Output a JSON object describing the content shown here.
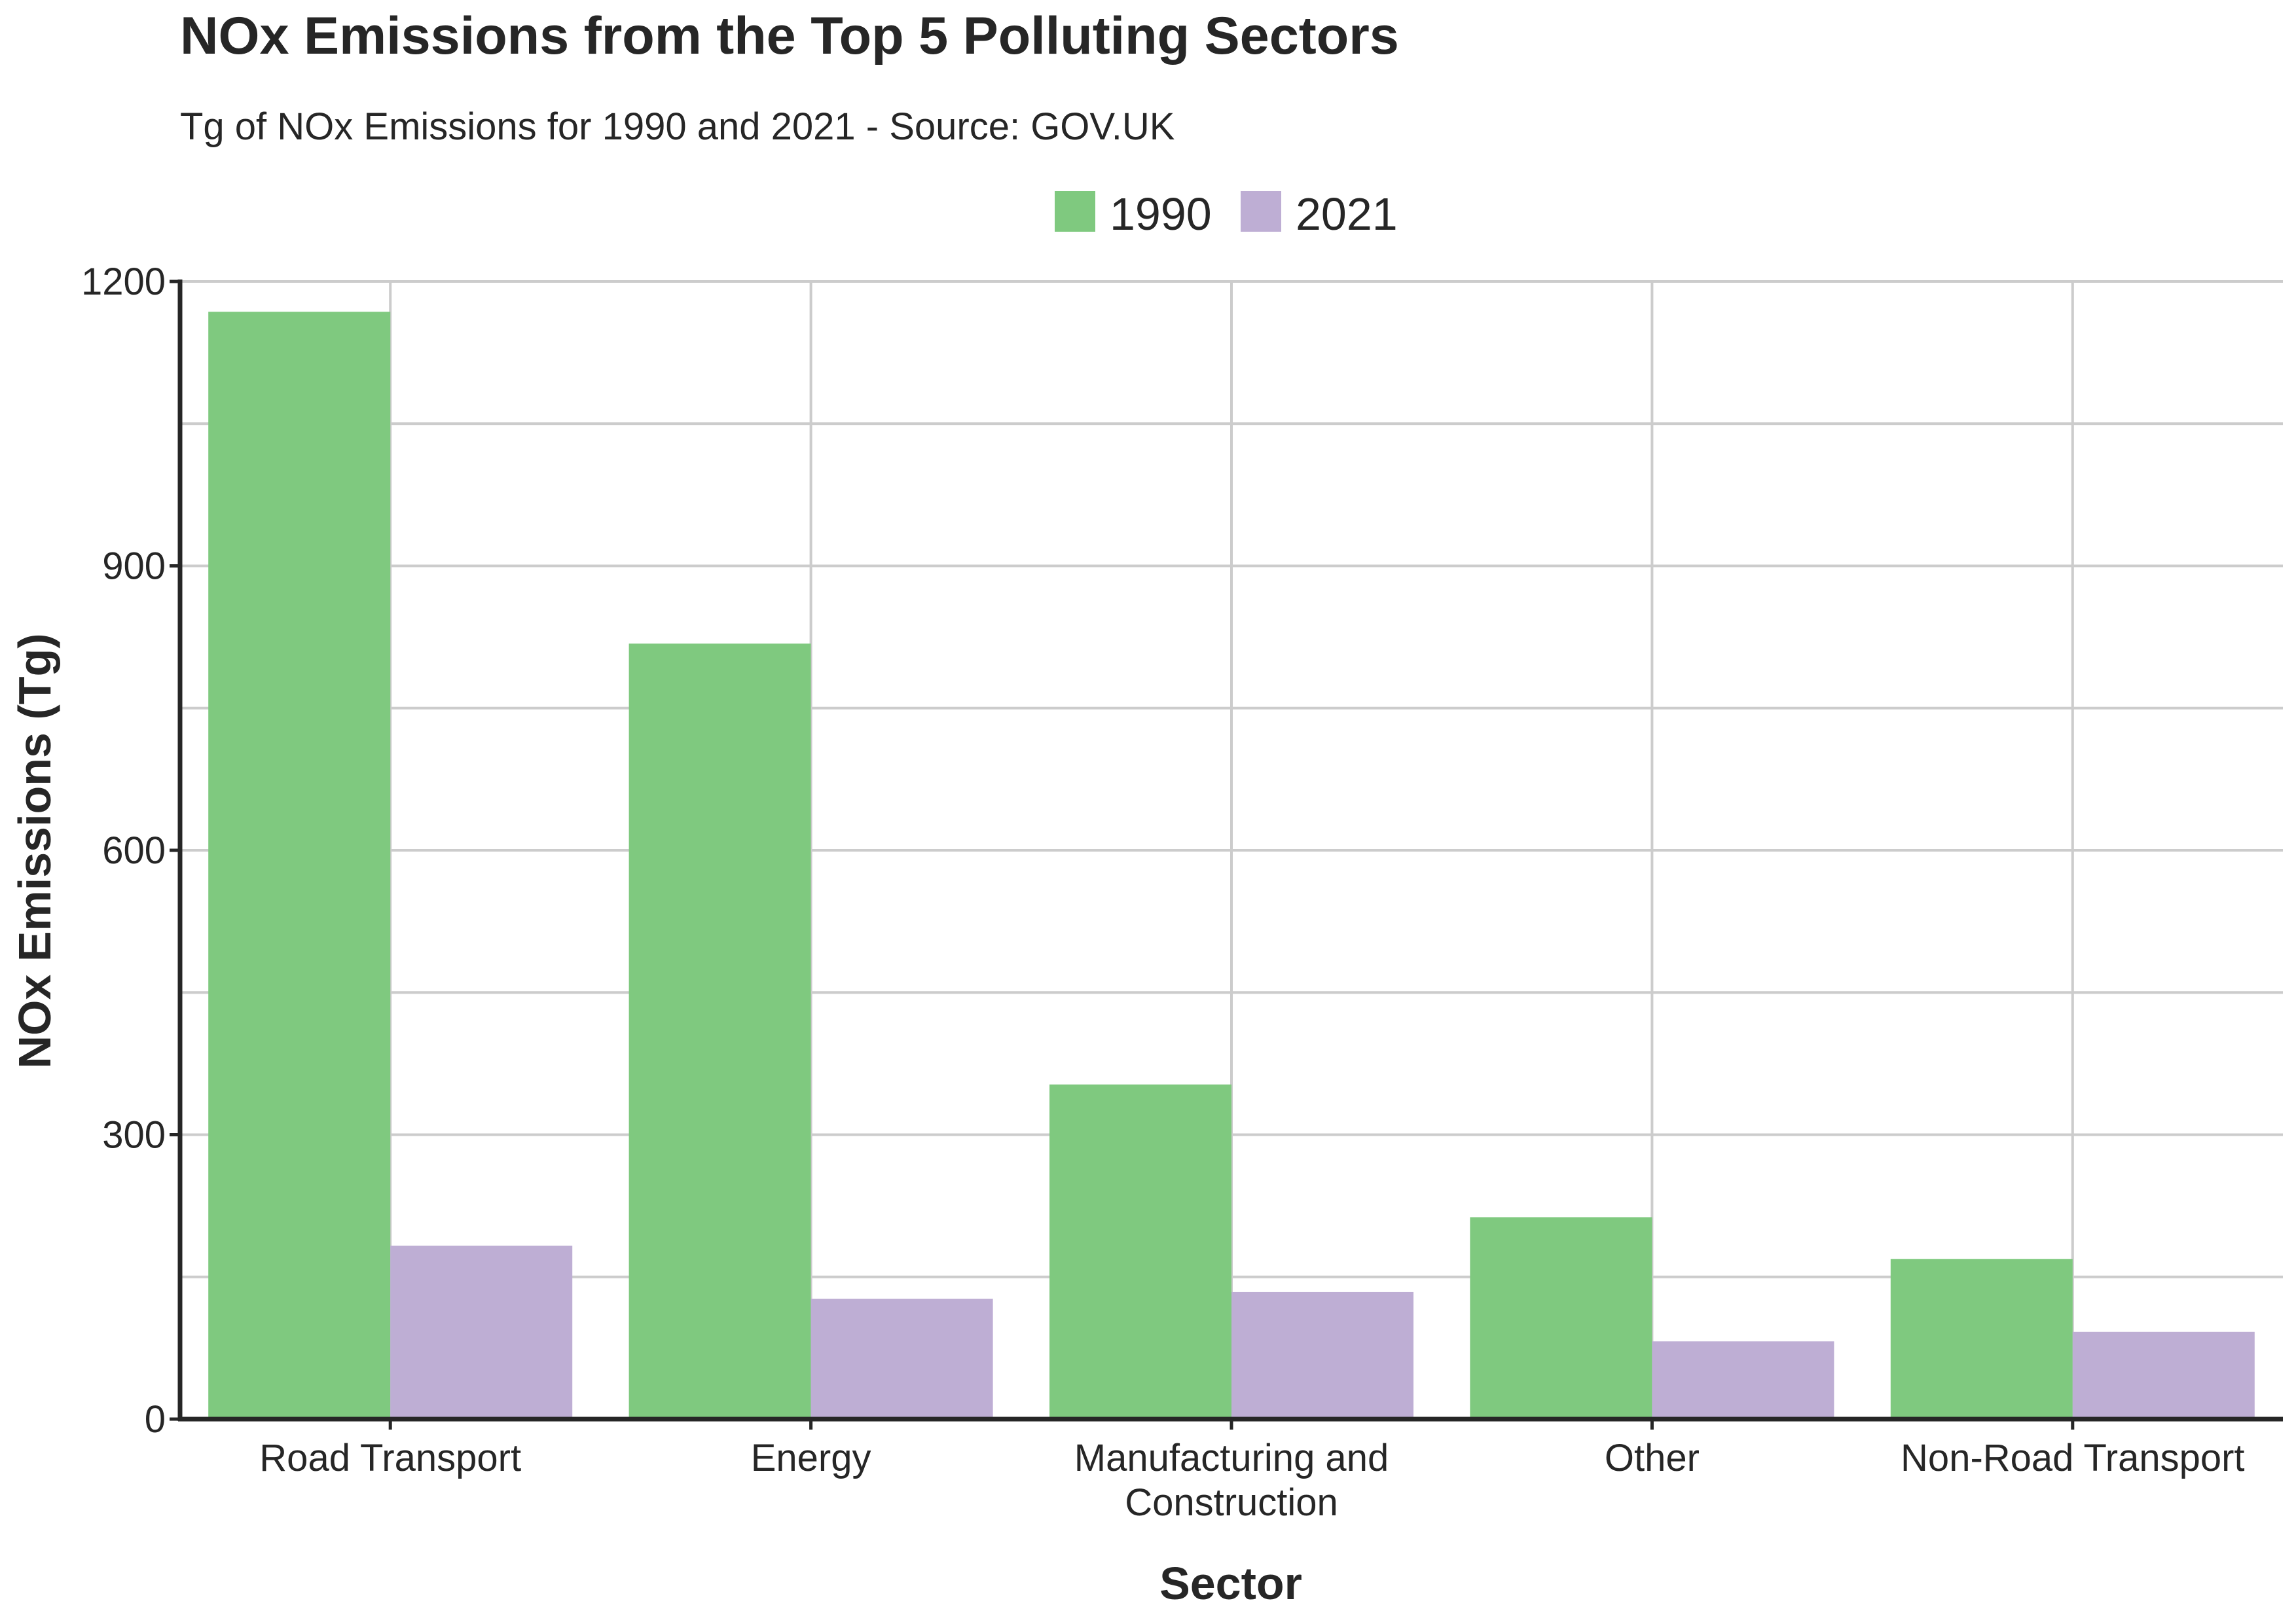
{
  "chart_data": {
    "type": "bar",
    "title": "NOx Emissions from the Top 5 Polluting Sectors",
    "subtitle": "Tg of NOx Emissions for 1990 and 2021 - Source: GOV.UK",
    "xlabel": "Sector",
    "ylabel": "NOx Emissions (Tg)",
    "ylim": [
      0,
      1200
    ],
    "yticks": [
      "0",
      "300",
      "600",
      "900",
      "1200"
    ],
    "grid": true,
    "legend_position": "top-center",
    "categories": [
      [
        "Road Transport"
      ],
      [
        "Energy"
      ],
      [
        "Manufacturing and",
        "Construction"
      ],
      [
        "Other"
      ],
      [
        "Non-Road Transport"
      ]
    ],
    "series": [
      {
        "name": "1990",
        "color": "#7fc97f",
        "values": [
          1168,
          818,
          353,
          213,
          169
        ]
      },
      {
        "name": "2021",
        "color": "#beaed4",
        "values": [
          183,
          127,
          134,
          82,
          92
        ]
      }
    ]
  }
}
